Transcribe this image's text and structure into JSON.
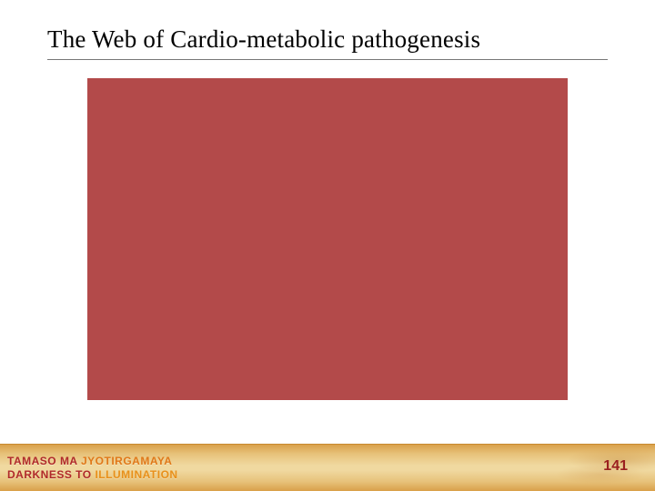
{
  "slide": {
    "title": "The Web of Cardio-metabolic pathogenesis",
    "page_number": "141",
    "content_box_color": "#b34a4a",
    "motto": {
      "line1_a": {
        "text": "TAMASO MA ",
        "color": "#b02a2a"
      },
      "line1_b": {
        "text": "JYOTIRGAMAYA",
        "color": "#e07818"
      },
      "line2_a": {
        "text": "DARKNESS TO ",
        "color": "#b02a2a"
      },
      "line2_b": {
        "text": "ILLUMINATION",
        "color": "#e8901a"
      }
    },
    "page_number_color": "#9a1f1f"
  }
}
